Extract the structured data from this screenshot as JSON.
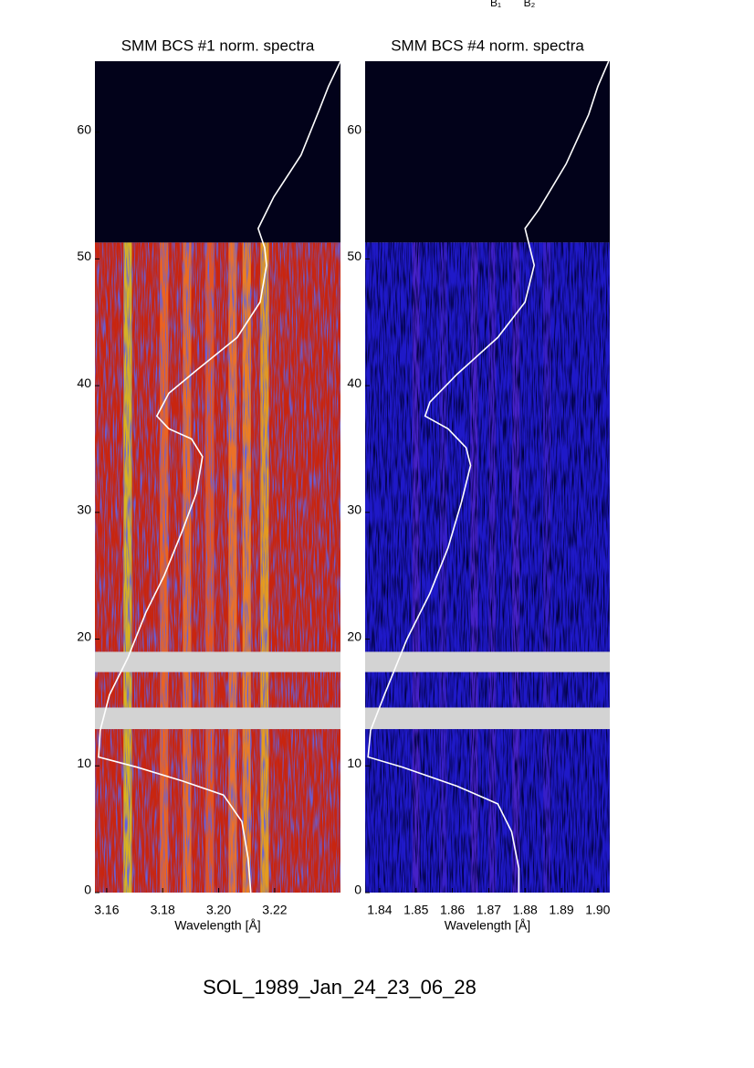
{
  "top_labels": [
    "B₁",
    "B₂"
  ],
  "footer_title": "SOL_1989_Jan_24_23_06_28",
  "chart_data": [
    {
      "type": "spectrogram",
      "title": "SMM BCS #1 norm. spectra",
      "xlabel": "Wavelength [Å]",
      "xlim": [
        3.1558,
        3.2435
      ],
      "ylim": [
        0,
        65.6
      ],
      "xticks": [
        3.16,
        3.18,
        {
          "value": 3.2,
          "label": "3.20"
        },
        3.22
      ],
      "yticks": [
        0,
        10,
        20,
        30,
        40,
        50,
        60
      ],
      "color": "#c8250f",
      "quiet_color": "#02021a",
      "quiet_above": 51.3,
      "gap_color": "#d3d3d3",
      "gaps": [
        [
          17.4,
          19.0
        ],
        [
          12.9,
          14.6
        ]
      ],
      "bands": [
        3.1675,
        3.1805,
        3.1887,
        3.1968,
        3.205,
        3.21,
        3.2164
      ],
      "band_width": 0.003,
      "band_colors": [
        "#d8c424",
        "#f06a22",
        "#ef7424",
        "#e85a22",
        "#f07a2a",
        "#f08a24",
        "#e8a820"
      ],
      "lightcurve": {
        "color": "#ffffff",
        "x": [
          3.2435,
          3.2392,
          3.236,
          3.2294,
          3.2197,
          3.2141,
          3.2164,
          3.2171,
          3.2148,
          3.2066,
          3.192,
          3.1822,
          3.1779,
          3.1822,
          3.1903,
          3.1942,
          3.192,
          3.1871,
          3.1805,
          3.174,
          3.1675,
          3.161,
          3.1577,
          3.1571,
          3.1708,
          3.1871,
          3.2017,
          3.2083,
          3.2105,
          3.2115
        ],
        "y": [
          65.6,
          63.6,
          61.8,
          58.2,
          54.9,
          52.4,
          50.9,
          49.5,
          46.6,
          43.8,
          41.2,
          39.4,
          37.6,
          36.6,
          35.8,
          34.4,
          31.5,
          28.6,
          25.0,
          22.1,
          18.5,
          15.6,
          12.8,
          10.7,
          9.9,
          8.8,
          7.7,
          5.6,
          2.7,
          0
        ]
      }
    },
    {
      "type": "spectrogram",
      "title": "SMM BCS #4 norm. spectra",
      "xlabel": "Wavelength [Å]",
      "xlim": [
        1.836,
        1.9033
      ],
      "ylim": [
        0,
        65.6
      ],
      "xticks": [
        1.84,
        1.85,
        1.86,
        1.87,
        1.88,
        1.89,
        {
          "value": 1.9,
          "label": "1.90"
        }
      ],
      "yticks": [
        0,
        10,
        20,
        30,
        40,
        50,
        60
      ],
      "color": "#1f19c8",
      "quiet_color": "#02021a",
      "quiet_above": 51.3,
      "gap_color": "#d3d3d3",
      "gaps": [
        [
          17.4,
          19.0
        ],
        [
          12.9,
          14.6
        ]
      ],
      "bands": [
        1.85,
        1.8575,
        1.866,
        1.871,
        1.8775,
        1.886
      ],
      "band_width": 0.002,
      "band_colors": [
        "#4a22c8",
        "#3a20c8",
        "#4a22c8",
        "#4020c8",
        "#4a22c8",
        "#3a20c8"
      ],
      "lightcurve": {
        "color": "#ffffff",
        "x": [
          1.903,
          1.9,
          1.8975,
          1.8913,
          1.8838,
          1.88,
          1.8813,
          1.8825,
          1.88,
          1.8725,
          1.8613,
          1.8538,
          1.8525,
          1.8588,
          1.8638,
          1.865,
          1.8625,
          1.8588,
          1.8538,
          1.8475,
          1.8413,
          1.8375,
          1.8368,
          1.8463,
          1.8613,
          1.8725,
          1.8763,
          1.8783,
          1.8783
        ],
        "y": [
          65.6,
          63.6,
          61.4,
          57.5,
          53.9,
          52.4,
          50.9,
          49.5,
          46.6,
          43.8,
          40.9,
          38.7,
          37.6,
          36.6,
          35.1,
          33.7,
          30.8,
          27.2,
          23.6,
          20.0,
          15.6,
          12.8,
          10.7,
          9.9,
          8.4,
          7.0,
          4.8,
          1.9,
          0
        ]
      }
    }
  ]
}
